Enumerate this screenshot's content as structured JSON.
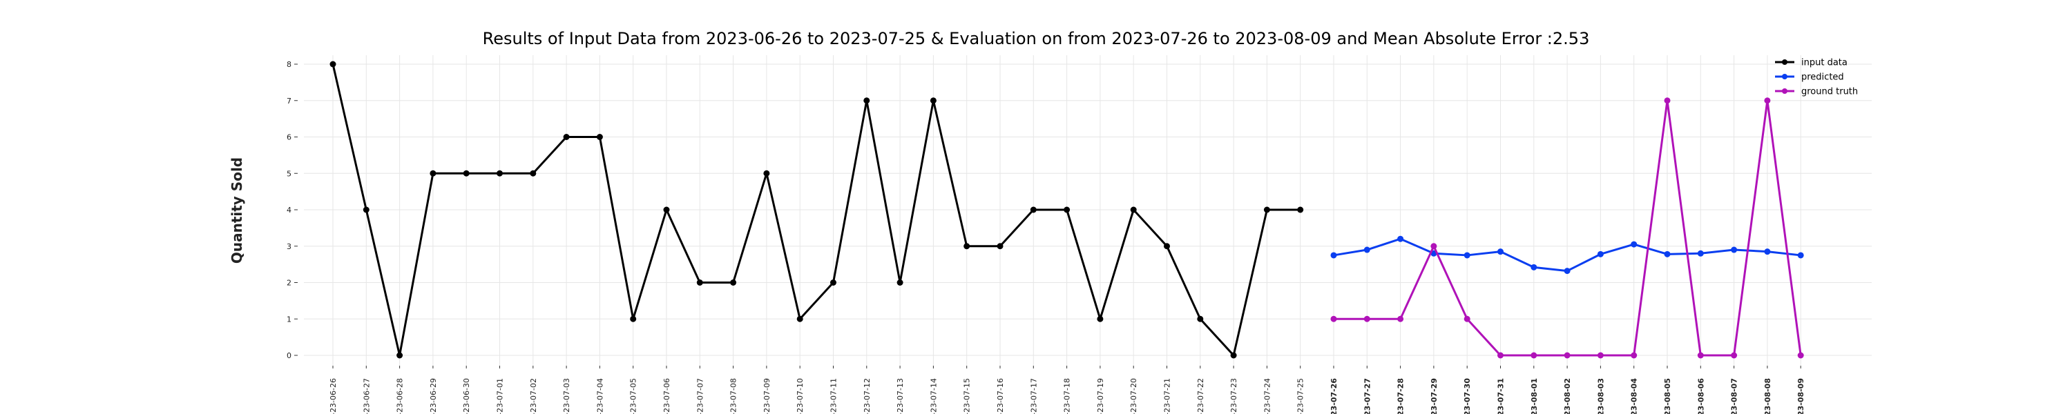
{
  "chart_data": {
    "type": "line",
    "title": "Results of Input Data from 2023-06-26 to 2023-07-25 & Evaluation on from 2023-07-26 to 2023-08-09 and Mean Absolute Error  :2.53",
    "xlabel": "",
    "ylabel": "Quantity Sold",
    "ylim": [
      0,
      8
    ],
    "yticks": [
      "0",
      "1",
      "2",
      "3",
      "4",
      "5",
      "6",
      "7",
      "8"
    ],
    "x": [
      "2023-06-26",
      "2023-06-27",
      "2023-06-28",
      "2023-06-29",
      "2023-06-30",
      "2023-07-01",
      "2023-07-02",
      "2023-07-03",
      "2023-07-04",
      "2023-07-05",
      "2023-07-06",
      "2023-07-07",
      "2023-07-08",
      "2023-07-09",
      "2023-07-10",
      "2023-07-11",
      "2023-07-12",
      "2023-07-13",
      "2023-07-14",
      "2023-07-15",
      "2023-07-16",
      "2023-07-17",
      "2023-07-18",
      "2023-07-19",
      "2023-07-20",
      "2023-07-21",
      "2023-07-22",
      "2023-07-23",
      "2023-07-24",
      "2023-07-25",
      "2023-07-26",
      "2023-07-27",
      "2023-07-28",
      "2023-07-29",
      "2023-07-30",
      "2023-07-31",
      "2023-08-01",
      "2023-08-02",
      "2023-08-03",
      "2023-08-04",
      "2023-08-05",
      "2023-08-06",
      "2023-08-07",
      "2023-08-08",
      "2023-08-09"
    ],
    "xtick_labels": [
      "-23-06-26",
      "-23-06-27",
      "-23-06-28",
      "-23-06-29",
      "-23-06-30",
      "-23-07-01",
      "-23-07-02",
      "-23-07-03",
      "-23-07-04",
      "-23-07-05",
      "-23-07-06",
      "-23-07-07",
      "-23-07-08",
      "-23-07-09",
      "-23-07-10",
      "-23-07-11",
      "-23-07-12",
      "-23-07-13",
      "-23-07-14",
      "-23-07-15",
      "-23-07-16",
      "-23-07-17",
      "-23-07-18",
      "-23-07-19",
      "-23-07-20",
      "-23-07-21",
      "-23-07-22",
      "-23-07-23",
      "-23-07-24",
      "-23-07-25",
      "-23-07-26",
      "-23-07-27",
      "-23-07-28",
      "-23-07-29",
      "-23-07-30",
      "-23-07-31",
      "-23-08-01",
      "-23-08-02",
      "-23-08-03",
      "-23-08-04",
      "-23-08-05",
      "-23-08-06",
      "-23-08-07",
      "-23-08-08",
      "-23-08-09"
    ],
    "grid": true,
    "legend_position": "top-right",
    "series": [
      {
        "name": "input data",
        "color": "#000000",
        "x": [
          "2023-06-26",
          "2023-06-27",
          "2023-06-28",
          "2023-06-29",
          "2023-06-30",
          "2023-07-01",
          "2023-07-02",
          "2023-07-03",
          "2023-07-04",
          "2023-07-05",
          "2023-07-06",
          "2023-07-07",
          "2023-07-08",
          "2023-07-09",
          "2023-07-10",
          "2023-07-11",
          "2023-07-12",
          "2023-07-13",
          "2023-07-14",
          "2023-07-15",
          "2023-07-16",
          "2023-07-17",
          "2023-07-18",
          "2023-07-19",
          "2023-07-20",
          "2023-07-21",
          "2023-07-22",
          "2023-07-23",
          "2023-07-24",
          "2023-07-25"
        ],
        "values": [
          8,
          4,
          0,
          5,
          5,
          5,
          5,
          6,
          6,
          1,
          4,
          2,
          2,
          5,
          1,
          2,
          7,
          2,
          7,
          3,
          3,
          4,
          4,
          1,
          4,
          3,
          1,
          0,
          4,
          4
        ]
      },
      {
        "name": "predicted",
        "color": "#0a3ef0",
        "x": [
          "2023-07-26",
          "2023-07-27",
          "2023-07-28",
          "2023-07-29",
          "2023-07-30",
          "2023-07-31",
          "2023-08-01",
          "2023-08-02",
          "2023-08-03",
          "2023-08-04",
          "2023-08-05",
          "2023-08-06",
          "2023-08-07",
          "2023-08-08",
          "2023-08-09"
        ],
        "values": [
          2.75,
          2.9,
          3.2,
          2.8,
          2.75,
          2.85,
          2.42,
          2.32,
          2.78,
          3.05,
          2.78,
          2.8,
          2.9,
          2.85,
          2.75
        ]
      },
      {
        "name": "ground truth",
        "color": "#b012b8",
        "x": [
          "2023-07-26",
          "2023-07-27",
          "2023-07-28",
          "2023-07-29",
          "2023-07-30",
          "2023-07-31",
          "2023-08-01",
          "2023-08-02",
          "2023-08-03",
          "2023-08-04",
          "2023-08-05",
          "2023-08-06",
          "2023-08-07",
          "2023-08-08",
          "2023-08-09"
        ],
        "values": [
          1,
          1,
          1,
          3,
          1,
          0,
          0,
          0,
          0,
          0,
          7,
          0,
          0,
          7,
          0
        ]
      }
    ]
  }
}
